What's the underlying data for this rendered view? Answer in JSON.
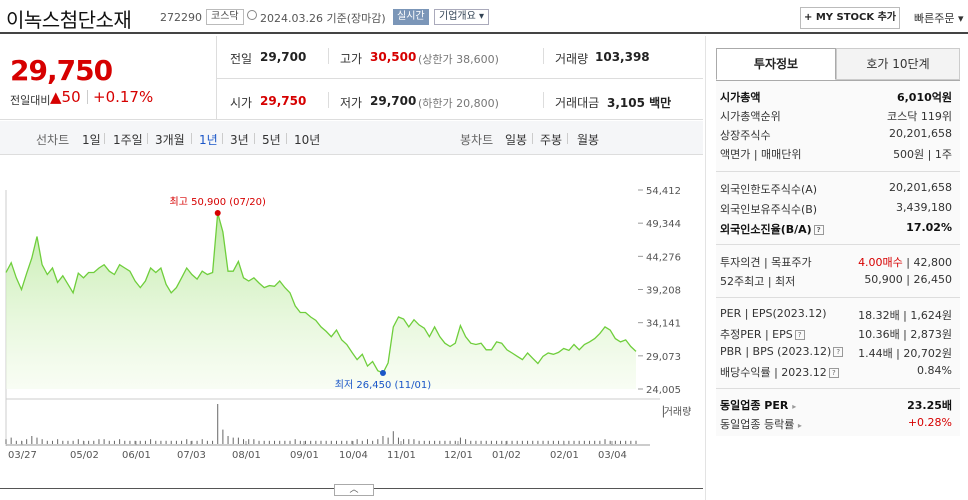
{
  "header": {
    "company_name": "이녹스첨단소재",
    "code": "272290",
    "market_badge": "코스닥",
    "date_text": "2024.03.26  기준(장마감)",
    "realtime_label": "실시간",
    "company_info_label": "기업개요 ▾",
    "mystock_label": "+ MY STOCK 추가",
    "quick_order_label": "빠른주문 ▾"
  },
  "price": {
    "current": "29,750",
    "change_label": "전일대비",
    "change_value": "▲50",
    "change_pct": "+0.17%",
    "prev_label": "전일",
    "prev_value": "29,700",
    "high_label": "고가",
    "high_value": "30,500",
    "upper_limit": "(상한가 38,600)",
    "volume_label": "거래량",
    "volume_value": "103,398",
    "open_label": "시가",
    "open_value": "29,750",
    "low_label": "저가",
    "low_value": "29,700",
    "lower_limit": "(하한가 20,800)",
    "amount_label": "거래대금",
    "amount_value": "3,105 백만"
  },
  "periodbar": {
    "line_label": "선차트",
    "line_periods": [
      "1일",
      "1주일",
      "3개월",
      "1년",
      "3년",
      "5년",
      "10년"
    ],
    "active_period": "1년",
    "candle_label": "봉차트",
    "candle_periods": [
      "일봉",
      "주봉",
      "월봉"
    ]
  },
  "chart_data": {
    "type": "area",
    "x_labels": [
      "03/27",
      "05/02",
      "06/01",
      "07/03",
      "08/01",
      "09/01",
      "10/04",
      "11/01",
      "12/01",
      "01/02",
      "02/01",
      "03/04"
    ],
    "y_ticks": [
      "54,412",
      "49,344",
      "44,276",
      "39,208",
      "34,141",
      "29,073",
      "24,005"
    ],
    "ylim": [
      24005,
      54412
    ],
    "high_annotation": "최고 50,900 (07/20)",
    "low_annotation": "최저 26,450 (11/01)",
    "volume_label": "거래량",
    "series_values": [
      41800,
      43300,
      41000,
      39200,
      41700,
      44000,
      47300,
      43000,
      41500,
      42500,
      40300,
      41300,
      40000,
      38700,
      41700,
      41000,
      41800,
      41800,
      42500,
      43000,
      42000,
      41500,
      43000,
      42500,
      42000,
      40500,
      39500,
      40500,
      42500,
      41800,
      42500,
      40000,
      38700,
      39500,
      41000,
      42500,
      41500,
      40800,
      42000,
      41500,
      41800,
      50900,
      48000,
      42000,
      42000,
      43500,
      41000,
      40500,
      41000,
      40200,
      39500,
      39800,
      39700,
      40500,
      39500,
      38700,
      36700,
      35700,
      35700,
      35000,
      34500,
      33500,
      32800,
      32000,
      33000,
      31500,
      30800,
      29600,
      28500,
      29300,
      27500,
      28200,
      26800,
      26450,
      28000,
      33500,
      35000,
      34700,
      33500,
      34600,
      33800,
      33300,
      32000,
      33500,
      32000,
      31000,
      30500,
      31000,
      33700,
      32000,
      31000,
      30800,
      31000,
      30000,
      30000,
      31200,
      31000,
      30000,
      29500,
      29000,
      28500,
      29500,
      28700,
      27900,
      29000,
      29500,
      29300,
      29600,
      30200,
      29900,
      30800,
      30000,
      30800,
      31200,
      31700,
      32500,
      33500,
      33000,
      31700,
      31200,
      31500,
      30500,
      29750
    ],
    "volume_values": [
      3,
      4,
      2,
      2,
      3,
      5,
      4,
      3,
      2,
      2,
      3,
      2,
      2,
      2,
      3,
      2,
      2,
      2,
      3,
      3,
      2,
      2,
      3,
      2,
      2,
      2,
      2,
      2,
      3,
      2,
      2,
      2,
      2,
      2,
      2,
      3,
      2,
      2,
      3,
      2,
      2,
      25,
      9,
      5,
      4,
      4,
      3,
      3,
      3,
      2,
      2,
      2,
      2,
      2,
      2,
      2,
      3,
      2,
      2,
      2,
      2,
      2,
      2,
      2,
      2,
      2,
      2,
      2,
      3,
      2,
      3,
      2,
      3,
      5,
      4,
      8,
      4,
      3,
      3,
      3,
      2,
      2,
      2,
      2,
      2,
      2,
      2,
      2,
      4,
      3,
      2,
      2,
      2,
      2,
      2,
      2,
      2,
      2,
      2,
      2,
      2,
      2,
      2,
      2,
      2,
      2,
      2,
      2,
      2,
      2,
      2,
      2,
      2,
      2,
      2,
      2,
      3,
      2,
      2,
      2,
      2,
      2,
      2
    ]
  },
  "side": {
    "tab_active": "투자정보",
    "tab_inactive": "호가 10단계",
    "rows1": [
      {
        "k": "시가총액",
        "v": "6,010억원",
        "bold": true
      },
      {
        "k": "시가총액순위",
        "v": "코스닥 119위"
      },
      {
        "k": "상장주식수",
        "v": "20,201,658"
      },
      {
        "k": "액면가 | 매매단위",
        "v": "500원 | 1주"
      }
    ],
    "rows2": [
      {
        "k": "외국인한도주식수(A)",
        "v": "20,201,658"
      },
      {
        "k": "외국인보유주식수(B)",
        "v": "3,439,180"
      },
      {
        "k": "외국인소진율(B/A)",
        "v": "17.02%",
        "bold": true
      }
    ],
    "rows3": [
      {
        "k": "투자의견 | 목표주가",
        "v1": "4.00매수",
        "v2": "42,800"
      },
      {
        "k": "52주최고 | 최저",
        "v": "50,900 | 26,450"
      }
    ],
    "rows4": [
      {
        "k": "PER | EPS(2023.12)",
        "v": "18.32배 | 1,624원"
      },
      {
        "k": "추정PER | EPS",
        "v": "10.36배 | 2,873원"
      },
      {
        "k": "PBR | BPS (2023.12)",
        "v": "1.44배 | 20,702원"
      },
      {
        "k": "배당수익률 | 2023.12",
        "v": "0.84%"
      }
    ],
    "rows5": [
      {
        "k": "동일업종 PER",
        "v": "23.25배",
        "bold": true
      },
      {
        "k": "동일업종 등락률",
        "v": "+0.28%"
      }
    ]
  },
  "collapse_label": "︿"
}
